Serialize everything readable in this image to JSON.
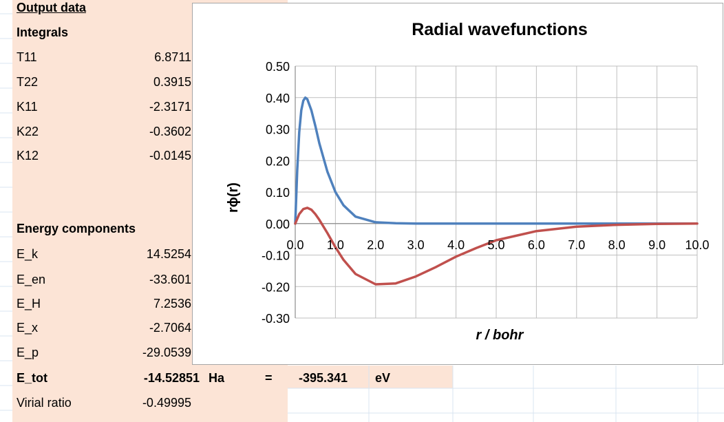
{
  "colors": {
    "cell_fill": "#fce4d6",
    "grid_line": "#d9e4f0",
    "chart_border": "#a6a6a6",
    "series_blue": "#4f81bd",
    "series_red": "#c0504d"
  },
  "sheet": {
    "output_title": "Output data",
    "integrals_header": "Integrals",
    "integrals": [
      {
        "label": "T11",
        "value": "6.8711"
      },
      {
        "label": "T22",
        "value": "0.3915"
      },
      {
        "label": "K11",
        "value": "-2.3171"
      },
      {
        "label": "K22",
        "value": "-0.3602"
      },
      {
        "label": "K12",
        "value": "-0.0145"
      }
    ],
    "energy_header": "Energy components",
    "energies": [
      {
        "label": "E_k",
        "value": "14.5254"
      },
      {
        "label": "E_en",
        "value": "-33.601"
      },
      {
        "label": "E_H",
        "value": "7.2536"
      },
      {
        "label": "E_x",
        "value": "-2.7064"
      },
      {
        "label": "E_p",
        "value": "-29.0539"
      }
    ],
    "etot": {
      "label": "E_tot",
      "value": "-14.52851",
      "unit_ha": "Ha",
      "equals": "=",
      "ev_value": "-395.341",
      "unit_ev": "eV"
    },
    "virial": {
      "label": "Virial ratio",
      "value": "-0.49995"
    }
  },
  "chart_data": {
    "type": "line",
    "title": "Radial wavefunctions",
    "xlabel": "r / bohr",
    "ylabel": "rϕ(r)",
    "xlim": [
      0,
      10
    ],
    "ylim": [
      -0.3,
      0.5
    ],
    "xticks": [
      "0.0",
      "1.0",
      "2.0",
      "3.0",
      "4.0",
      "5.0",
      "6.0",
      "7.0",
      "8.0",
      "9.0",
      "10.0"
    ],
    "yticks": [
      "0.50",
      "0.40",
      "0.30",
      "0.20",
      "0.10",
      "0.00",
      "-0.10",
      "-0.20",
      "-0.30"
    ],
    "grid": true,
    "legend": "none",
    "series": [
      {
        "color": "#4f81bd",
        "x": [
          0,
          0.05,
          0.1,
          0.15,
          0.2,
          0.25,
          0.3,
          0.4,
          0.5,
          0.6,
          0.8,
          1.0,
          1.2,
          1.5,
          2.0,
          2.5,
          3,
          4,
          5,
          6,
          7,
          8,
          9,
          10
        ],
        "y": [
          0,
          0.17,
          0.29,
          0.36,
          0.39,
          0.4,
          0.395,
          0.36,
          0.31,
          0.255,
          0.165,
          0.1,
          0.058,
          0.022,
          0.004,
          0.001,
          0,
          0,
          0,
          0,
          0,
          0,
          0,
          0
        ]
      },
      {
        "color": "#c0504d",
        "x": [
          0,
          0.1,
          0.2,
          0.3,
          0.4,
          0.5,
          0.6,
          0.8,
          1.0,
          1.2,
          1.5,
          2.0,
          2.5,
          3.0,
          3.5,
          4.0,
          4.5,
          5,
          6,
          7,
          8,
          9,
          10
        ],
        "y": [
          0,
          0.03,
          0.046,
          0.05,
          0.044,
          0.03,
          0.012,
          -0.03,
          -0.075,
          -0.115,
          -0.16,
          -0.193,
          -0.19,
          -0.168,
          -0.138,
          -0.105,
          -0.078,
          -0.053,
          -0.024,
          -0.01,
          -0.004,
          -0.001,
          0
        ]
      }
    ]
  }
}
